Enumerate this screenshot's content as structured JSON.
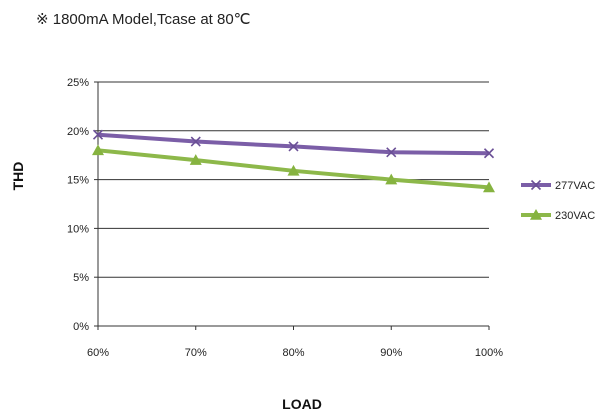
{
  "note": "※ 1800mA Model,Tcase at 80℃",
  "chart_data": {
    "type": "line",
    "categories": [
      "60%",
      "70%",
      "80%",
      "90%",
      "100%"
    ],
    "ylabel": "THD",
    "xlabel": "LOAD",
    "ylim": [
      0,
      25
    ],
    "yticks": [
      "0%",
      "5%",
      "10%",
      "15%",
      "20%",
      "25%"
    ],
    "grid": true,
    "legend_position": "right",
    "series": [
      {
        "name": "277VAC",
        "values": [
          19.6,
          18.9,
          18.4,
          17.8,
          17.7
        ],
        "color": "#7b5ea7",
        "marker": "x"
      },
      {
        "name": "230VAC",
        "values": [
          18.0,
          17.0,
          15.9,
          15.0,
          14.2
        ],
        "color": "#8db84a",
        "marker": "triangle"
      }
    ]
  }
}
